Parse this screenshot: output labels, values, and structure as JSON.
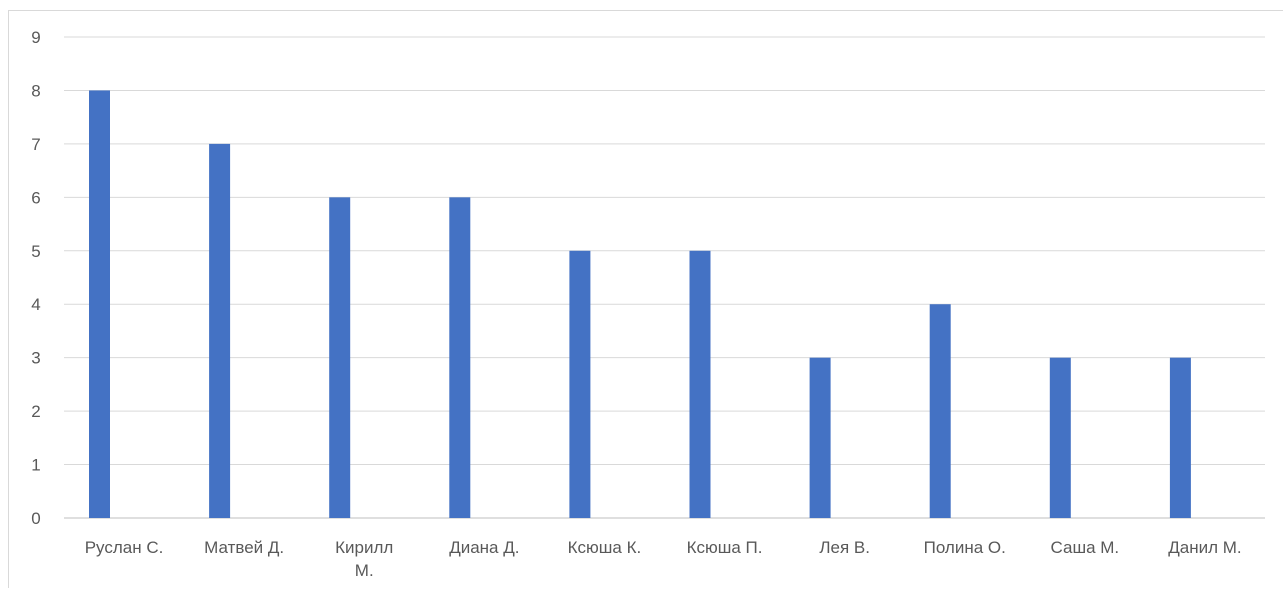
{
  "chart_data": {
    "type": "bar",
    "categories": [
      "Руслан С.",
      "Матвей Д.",
      "Кирилл М.",
      "Диана Д.",
      "Ксюша К.",
      "Ксюша П.",
      "Лея В.",
      "Полина О.",
      "Саша М.",
      "Данил М."
    ],
    "category_lines": [
      [
        "Руслан С."
      ],
      [
        "Матвей Д."
      ],
      [
        "Кирилл",
        "М."
      ],
      [
        "Диана Д."
      ],
      [
        "Ксюша К."
      ],
      [
        "Ксюша П."
      ],
      [
        "Лея В."
      ],
      [
        "Полина О."
      ],
      [
        "Саша М."
      ],
      [
        "Данил М."
      ]
    ],
    "values": [
      8,
      7,
      6,
      6,
      5,
      5,
      3,
      4,
      3,
      3
    ],
    "ylim": [
      0,
      9
    ],
    "yticks": [
      0,
      1,
      2,
      3,
      4,
      5,
      6,
      7,
      8,
      9
    ],
    "grid": true,
    "title": "",
    "xlabel": "",
    "ylabel": "",
    "colors": {
      "bar": "#4472c4",
      "grid": "#d9d9d9",
      "text": "#595959"
    }
  }
}
